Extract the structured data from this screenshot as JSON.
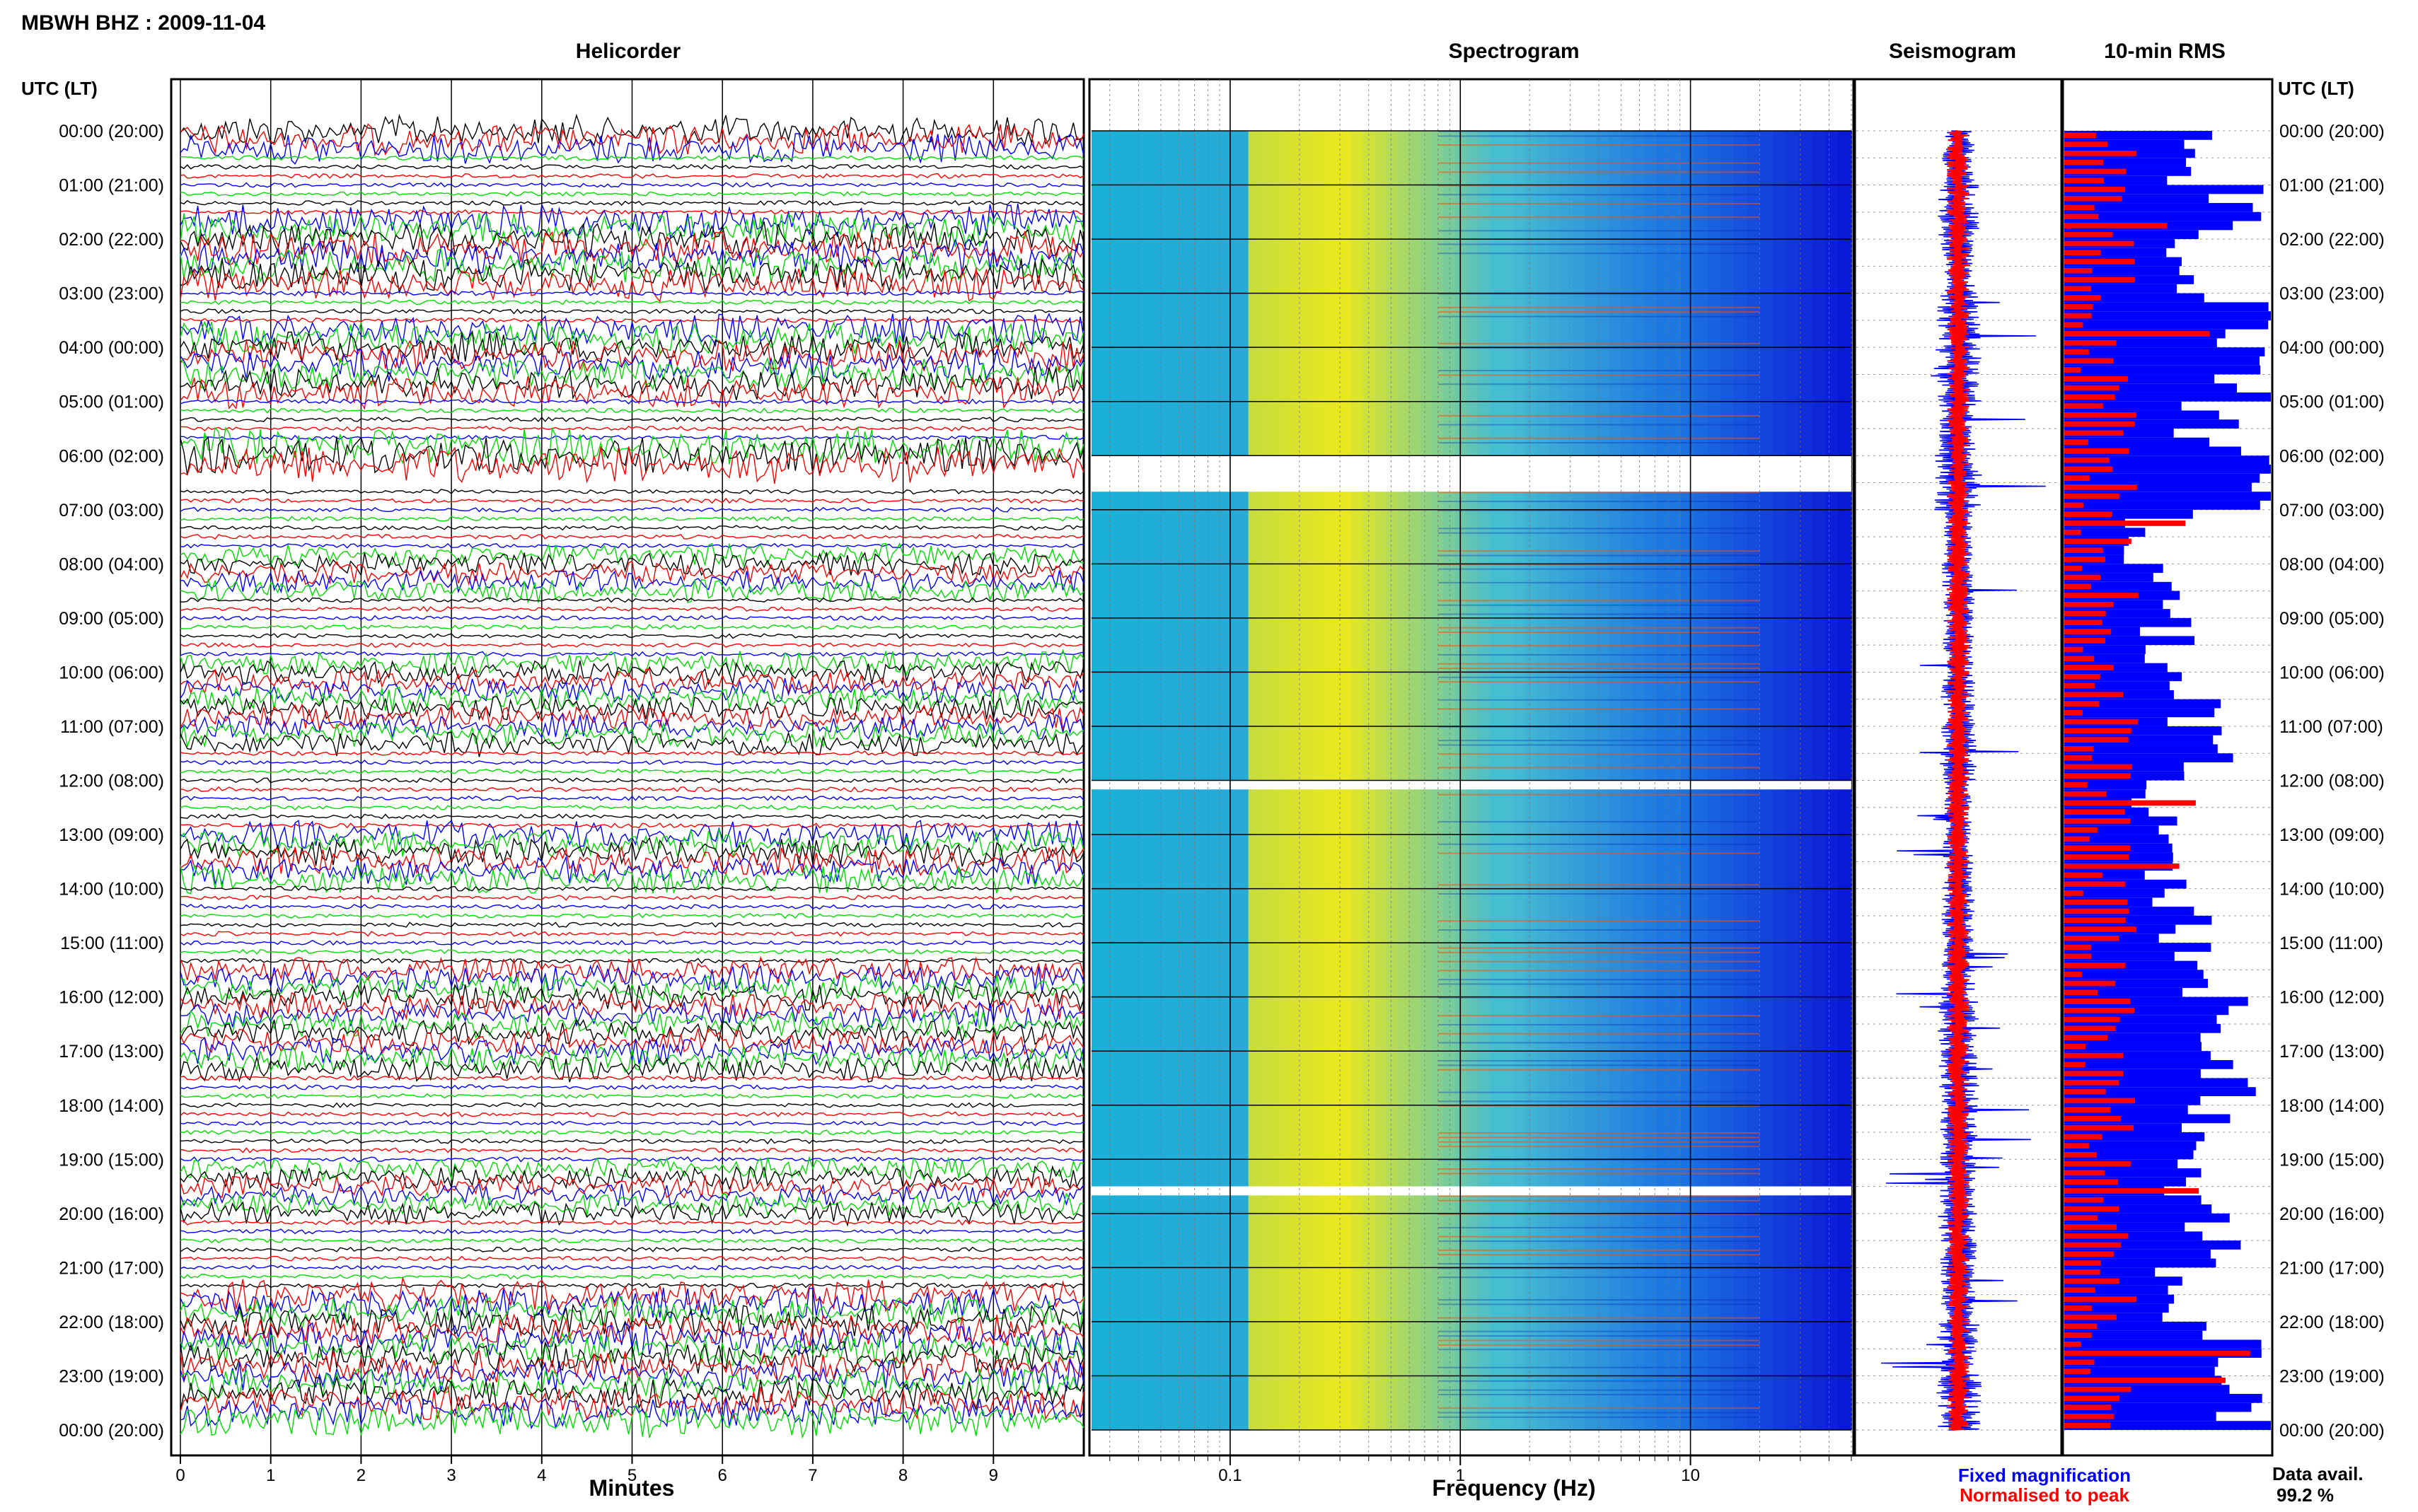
{
  "figure": {
    "station_title": "MBWH BHZ : 2009-11-04",
    "utc_label_left": "UTC (LT)",
    "utc_label_right": "UTC (LT)",
    "data_avail_label": "Data avail.",
    "data_avail_value": "99.2 %"
  },
  "panels": {
    "helicorder": "Helicorder",
    "spectrogram": "Spectrogram",
    "seismogram": "Seismogram",
    "rms": "10-min RMS"
  },
  "colors": {
    "trace_cycle": [
      "#000000",
      "#ff0000",
      "#0000ff",
      "#00dd00"
    ],
    "fixed": "#0000ff",
    "normalised": "#ff0000",
    "spectro_low": "#1ab0d8",
    "spectro_mid": "#e8e820",
    "spectro_high": "#0a18d8"
  },
  "chart_data": [
    {
      "type": "line",
      "panel": "helicorder",
      "title": "Helicorder",
      "xlabel": "Minutes",
      "x_ticks": [
        "0",
        "1",
        "2",
        "3",
        "4",
        "5",
        "6",
        "7",
        "8",
        "9"
      ],
      "xlim": [
        0,
        10
      ],
      "traces_per_hour": 6,
      "gap_start": "06:20",
      "gap_end": "06:40",
      "event_windows": [
        {
          "start": "00:00",
          "end": "00:20",
          "level": 0.8
        },
        {
          "start": "01:40",
          "end": "02:50",
          "level": 0.9
        },
        {
          "start": "03:40",
          "end": "04:50",
          "level": 0.85
        },
        {
          "start": "05:50",
          "end": "06:20",
          "level": 1.0
        },
        {
          "start": "07:50",
          "end": "08:30",
          "level": 0.6
        },
        {
          "start": "09:50",
          "end": "11:20",
          "level": 0.65
        },
        {
          "start": "13:00",
          "end": "13:50",
          "level": 0.75
        },
        {
          "start": "15:30",
          "end": "17:20",
          "level": 0.7
        },
        {
          "start": "19:10",
          "end": "20:00",
          "level": 0.6
        },
        {
          "start": "21:30",
          "end": "23:50",
          "level": 0.85
        }
      ]
    },
    {
      "type": "heatmap",
      "panel": "spectrogram",
      "title": "Spectrogram",
      "xlabel": "Frequency (Hz)",
      "x_scale": "log",
      "xlim": [
        0.025,
        50
      ],
      "x_ticks": [
        "0.1",
        "1",
        "10"
      ],
      "gaps": [
        "06:00-06:40",
        "12:00-12:10",
        "19:30-19:40"
      ]
    },
    {
      "type": "line",
      "panel": "seismogram",
      "title": "Seismogram",
      "series": [
        {
          "name": "Fixed magnification"
        },
        {
          "name": "Normalised to peak"
        }
      ]
    },
    {
      "type": "bar",
      "panel": "rms",
      "title": "10-min RMS",
      "orientation": "horizontal",
      "series": [
        {
          "name": "Fixed magnification"
        },
        {
          "name": "Normalised to peak"
        }
      ],
      "hour_levels_fixed": [
        0.55,
        0.8,
        0.6,
        0.85,
        0.9,
        0.7,
        0.95,
        0.45,
        0.55,
        0.5,
        0.6,
        0.65,
        0.4,
        0.5,
        0.55,
        0.6,
        0.75,
        0.8,
        0.7,
        0.65,
        0.75,
        0.6,
        0.8,
        0.9,
        0.55
      ]
    }
  ],
  "y_axis": {
    "hour_labels": [
      "00:00 (20:00)",
      "01:00 (21:00)",
      "02:00 (22:00)",
      "03:00 (23:00)",
      "04:00 (00:00)",
      "05:00 (01:00)",
      "06:00 (02:00)",
      "07:00 (03:00)",
      "08:00 (04:00)",
      "09:00 (05:00)",
      "10:00 (06:00)",
      "11:00 (07:00)",
      "12:00 (08:00)",
      "13:00 (09:00)",
      "14:00 (10:00)",
      "15:00 (11:00)",
      "16:00 (12:00)",
      "17:00 (13:00)",
      "18:00 (14:00)",
      "19:00 (15:00)",
      "20:00 (16:00)",
      "21:00 (17:00)",
      "22:00 (18:00)",
      "23:00 (19:00)",
      "00:00 (20:00)"
    ]
  },
  "legend": {
    "fixed_label": "Fixed magnification",
    "normalised_label": "Normalised to peak"
  }
}
